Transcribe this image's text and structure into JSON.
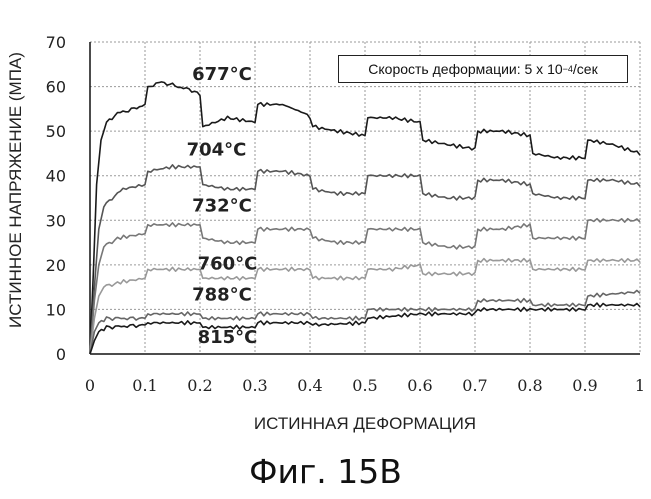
{
  "caption": "Фиг. 15В",
  "annotation": {
    "prefix": "Скорость деформации: 5 x 10",
    "exponent": "−4",
    "suffix": "/сек"
  },
  "chart_data": {
    "type": "line",
    "xlabel": "ИСТИННАЯ ДЕФОРМАЦИЯ",
    "ylabel": "ИСТИННОЕ НАПРЯЖЕНИЕ (МПА)",
    "xlim": [
      0,
      1
    ],
    "ylim": [
      0,
      70
    ],
    "xticks": [
      "0",
      "0.1",
      "0.2",
      "0.3",
      "0.4",
      "0.5",
      "0.6",
      "0.7",
      "0.8",
      "0.9",
      "1"
    ],
    "yticks": [
      "0",
      "10",
      "20",
      "30",
      "40",
      "50",
      "60",
      "70"
    ],
    "grid": true,
    "series": [
      {
        "name": "677°C",
        "color": "#1a1a1a",
        "label_at": [
          0.24,
          61.5
        ],
        "points": [
          [
            0,
            0
          ],
          [
            0.006,
            18
          ],
          [
            0.012,
            38
          ],
          [
            0.02,
            48
          ],
          [
            0.03,
            52
          ],
          [
            0.05,
            54
          ],
          [
            0.08,
            55
          ],
          [
            0.1,
            56
          ],
          [
            0.105,
            60
          ],
          [
            0.13,
            61
          ],
          [
            0.16,
            60
          ],
          [
            0.19,
            59
          ],
          [
            0.2,
            58
          ],
          [
            0.205,
            51
          ],
          [
            0.25,
            53
          ],
          [
            0.3,
            52
          ],
          [
            0.305,
            56
          ],
          [
            0.35,
            56
          ],
          [
            0.39,
            54
          ],
          [
            0.4,
            53
          ],
          [
            0.405,
            51
          ],
          [
            0.45,
            50
          ],
          [
            0.5,
            49
          ],
          [
            0.505,
            53
          ],
          [
            0.55,
            53
          ],
          [
            0.6,
            52
          ],
          [
            0.605,
            48
          ],
          [
            0.65,
            47
          ],
          [
            0.7,
            46
          ],
          [
            0.705,
            50
          ],
          [
            0.75,
            50
          ],
          [
            0.8,
            49
          ],
          [
            0.805,
            45
          ],
          [
            0.85,
            44
          ],
          [
            0.9,
            44
          ],
          [
            0.905,
            48
          ],
          [
            0.95,
            47
          ],
          [
            1.0,
            45
          ]
        ]
      },
      {
        "name": "704°C",
        "color": "#555555",
        "label_at": [
          0.23,
          44.5
        ],
        "points": [
          [
            0,
            0
          ],
          [
            0.008,
            15
          ],
          [
            0.016,
            28
          ],
          [
            0.025,
            33
          ],
          [
            0.04,
            35
          ],
          [
            0.06,
            37
          ],
          [
            0.1,
            38
          ],
          [
            0.105,
            41
          ],
          [
            0.15,
            42
          ],
          [
            0.2,
            42
          ],
          [
            0.205,
            38
          ],
          [
            0.25,
            37
          ],
          [
            0.3,
            37
          ],
          [
            0.305,
            41
          ],
          [
            0.35,
            41
          ],
          [
            0.4,
            40
          ],
          [
            0.405,
            37
          ],
          [
            0.45,
            36
          ],
          [
            0.5,
            36
          ],
          [
            0.505,
            40
          ],
          [
            0.55,
            40
          ],
          [
            0.6,
            40
          ],
          [
            0.605,
            36
          ],
          [
            0.65,
            35
          ],
          [
            0.7,
            35
          ],
          [
            0.705,
            39
          ],
          [
            0.75,
            39
          ],
          [
            0.8,
            38
          ],
          [
            0.805,
            36
          ],
          [
            0.85,
            35
          ],
          [
            0.9,
            35
          ],
          [
            0.905,
            39
          ],
          [
            0.95,
            39
          ],
          [
            1.0,
            38
          ]
        ]
      },
      {
        "name": "732°C",
        "color": "#777777",
        "label_at": [
          0.24,
          32.0
        ],
        "points": [
          [
            0,
            0
          ],
          [
            0.008,
            12
          ],
          [
            0.016,
            20
          ],
          [
            0.025,
            24
          ],
          [
            0.05,
            26
          ],
          [
            0.1,
            27
          ],
          [
            0.105,
            29
          ],
          [
            0.15,
            29
          ],
          [
            0.2,
            29
          ],
          [
            0.205,
            26
          ],
          [
            0.25,
            25
          ],
          [
            0.3,
            25
          ],
          [
            0.305,
            28
          ],
          [
            0.35,
            28
          ],
          [
            0.4,
            28
          ],
          [
            0.405,
            26
          ],
          [
            0.45,
            25
          ],
          [
            0.5,
            25
          ],
          [
            0.505,
            28
          ],
          [
            0.55,
            28
          ],
          [
            0.6,
            28
          ],
          [
            0.605,
            25
          ],
          [
            0.65,
            24
          ],
          [
            0.7,
            24
          ],
          [
            0.705,
            28
          ],
          [
            0.75,
            28
          ],
          [
            0.8,
            29
          ],
          [
            0.805,
            26
          ],
          [
            0.85,
            26
          ],
          [
            0.9,
            26
          ],
          [
            0.905,
            30
          ],
          [
            0.95,
            30
          ],
          [
            1.0,
            30
          ]
        ]
      },
      {
        "name": "760°C",
        "color": "#999999",
        "label_at": [
          0.25,
          19.0
        ],
        "points": [
          [
            0,
            0
          ],
          [
            0.008,
            8
          ],
          [
            0.016,
            13
          ],
          [
            0.025,
            15
          ],
          [
            0.05,
            16
          ],
          [
            0.1,
            17
          ],
          [
            0.105,
            19
          ],
          [
            0.15,
            19
          ],
          [
            0.2,
            19
          ],
          [
            0.205,
            17
          ],
          [
            0.25,
            17
          ],
          [
            0.3,
            17
          ],
          [
            0.305,
            19
          ],
          [
            0.35,
            19
          ],
          [
            0.4,
            19
          ],
          [
            0.405,
            17
          ],
          [
            0.45,
            17
          ],
          [
            0.5,
            17
          ],
          [
            0.505,
            19
          ],
          [
            0.55,
            19
          ],
          [
            0.6,
            20
          ],
          [
            0.605,
            18
          ],
          [
            0.65,
            18
          ],
          [
            0.7,
            18
          ],
          [
            0.705,
            21
          ],
          [
            0.75,
            21
          ],
          [
            0.8,
            21
          ],
          [
            0.805,
            19
          ],
          [
            0.85,
            19
          ],
          [
            0.9,
            19
          ],
          [
            0.905,
            21
          ],
          [
            0.95,
            21
          ],
          [
            1.0,
            21
          ]
        ]
      },
      {
        "name": "788°C",
        "color": "#666666",
        "label_at": [
          0.24,
          12.0
        ],
        "points": [
          [
            0,
            0
          ],
          [
            0.008,
            5
          ],
          [
            0.016,
            7
          ],
          [
            0.03,
            8
          ],
          [
            0.1,
            8
          ],
          [
            0.105,
            9
          ],
          [
            0.2,
            9
          ],
          [
            0.205,
            8
          ],
          [
            0.3,
            8
          ],
          [
            0.305,
            9
          ],
          [
            0.4,
            9
          ],
          [
            0.405,
            8
          ],
          [
            0.5,
            8
          ],
          [
            0.505,
            10
          ],
          [
            0.6,
            10
          ],
          [
            0.605,
            10
          ],
          [
            0.7,
            10
          ],
          [
            0.705,
            12
          ],
          [
            0.8,
            12
          ],
          [
            0.805,
            11
          ],
          [
            0.9,
            11
          ],
          [
            0.905,
            13
          ],
          [
            1.0,
            14
          ]
        ]
      },
      {
        "name": "815°C",
        "color": "#1a1a1a",
        "label_at": [
          0.25,
          2.5
        ],
        "points": [
          [
            0,
            0
          ],
          [
            0.008,
            3
          ],
          [
            0.016,
            5
          ],
          [
            0.03,
            6
          ],
          [
            0.1,
            6.5
          ],
          [
            0.105,
            7
          ],
          [
            0.2,
            7
          ],
          [
            0.205,
            6
          ],
          [
            0.3,
            6
          ],
          [
            0.305,
            7
          ],
          [
            0.4,
            7
          ],
          [
            0.405,
            6.5
          ],
          [
            0.5,
            7
          ],
          [
            0.505,
            8
          ],
          [
            0.6,
            9
          ],
          [
            0.605,
            9
          ],
          [
            0.7,
            9
          ],
          [
            0.705,
            10
          ],
          [
            0.8,
            10
          ],
          [
            0.805,
            10
          ],
          [
            0.9,
            10
          ],
          [
            0.905,
            11
          ],
          [
            1.0,
            11
          ]
        ]
      }
    ]
  }
}
